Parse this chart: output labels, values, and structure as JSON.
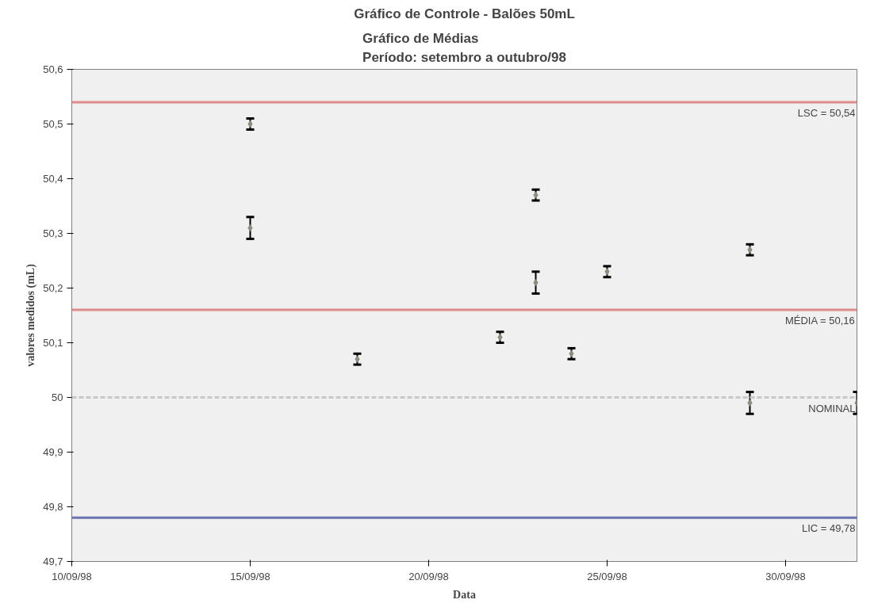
{
  "chart_data": {
    "type": "scatter",
    "title": "Gráfico de Controle - Balões 50mL",
    "subtitle": "Gráfico de Médias\nPeríodo: setembro a outubro/98",
    "xlabel": "Data",
    "ylabel": "valores medidos (mL)",
    "x": [
      "1998-09-15",
      "1998-09-15",
      "1998-09-18",
      "1998-09-22",
      "1998-09-23",
      "1998-09-23",
      "1998-09-24",
      "1998-09-25",
      "1998-09-29",
      "1998-09-29",
      "1998-10-02"
    ],
    "values": [
      50.5,
      50.31,
      50.07,
      50.11,
      50.37,
      50.21,
      50.08,
      50.23,
      50.27,
      49.99,
      49.99
    ],
    "errors": [
      0.01,
      0.02,
      0.01,
      0.01,
      0.01,
      0.02,
      0.01,
      0.01,
      0.01,
      0.02,
      0.02
    ],
    "color": "#8a9080",
    "marker": "diamond",
    "xlim": [
      "1998-09-10",
      "1998-10-02"
    ],
    "xticks": [
      {
        "value": "1998-09-10",
        "label": "10/09/98"
      },
      {
        "value": "1998-09-15",
        "label": "15/09/98"
      },
      {
        "value": "1998-09-20",
        "label": "20/09/98"
      },
      {
        "value": "1998-09-25",
        "label": "25/09/98"
      },
      {
        "value": "1998-09-30",
        "label": "30/09/98"
      }
    ],
    "ylim": [
      49.7,
      50.6
    ],
    "yticks": [
      {
        "value": 50.6,
        "label": "50,6"
      },
      {
        "value": 50.5,
        "label": "50,5"
      },
      {
        "value": 50.4,
        "label": "50,4"
      },
      {
        "value": 50.3,
        "label": "50,3"
      },
      {
        "value": 50.2,
        "label": "50,2"
      },
      {
        "value": 50.1,
        "label": "50,1"
      },
      {
        "value": 50,
        "label": "50"
      },
      {
        "value": 49.9,
        "label": "49,9"
      },
      {
        "value": 49.8,
        "label": "49,8"
      },
      {
        "value": 49.7,
        "label": "49,7"
      }
    ],
    "ref_lines": [
      {
        "axis": "y",
        "value": 50.54,
        "label": "LSC = 50,54",
        "color": "#e08a8a"
      },
      {
        "axis": "y",
        "value": 50.16,
        "label": "MÉDIA = 50,16",
        "color": "#e08a8a"
      },
      {
        "axis": "y",
        "value": 50,
        "label": "NOMINAL",
        "color": "#c8c8c8",
        "line_style": "dashed"
      },
      {
        "axis": "y",
        "value": 49.78,
        "label": "LIC = 49,78",
        "color": "#6a74b0"
      }
    ],
    "grid": false
  }
}
